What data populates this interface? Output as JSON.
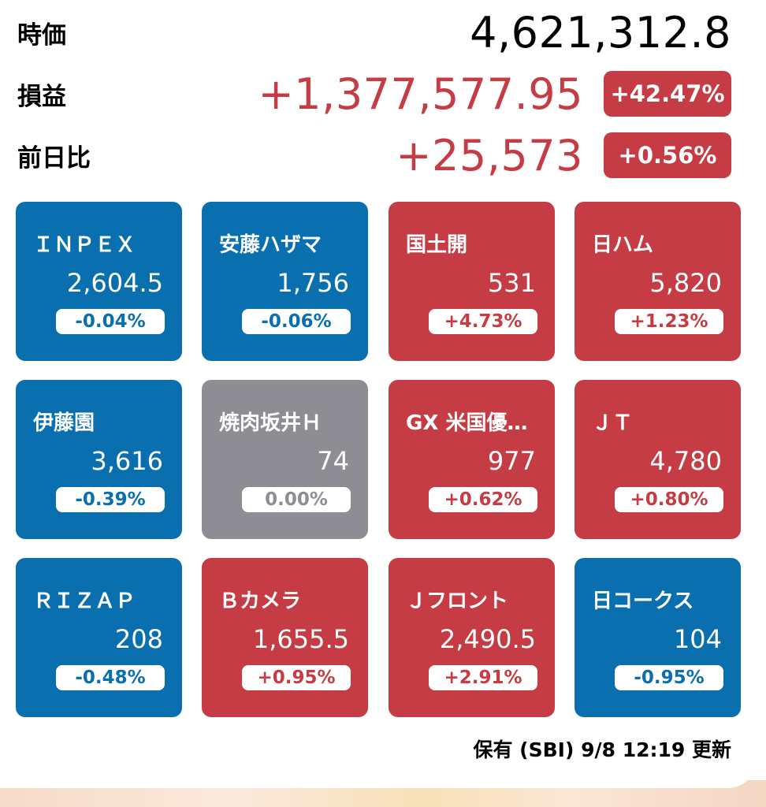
{
  "summary": {
    "market_value_label": "時価",
    "market_value": "4,621,312.8",
    "pl_label": "損益",
    "pl_value": "+1,377,577.95",
    "pl_pct": "+42.47%",
    "day_label": "前日比",
    "day_value": "+25,573",
    "day_pct": "+0.56%"
  },
  "colors": {
    "down": "#0a6fae",
    "up": "#c63c44",
    "flat": "#8e8d93"
  },
  "tiles": [
    {
      "name": "ＩＮＰＥＸ",
      "price": "2,604.5",
      "change": "-0.04%",
      "trend": "down"
    },
    {
      "name": "安藤ハザマ",
      "price": "1,756",
      "change": "-0.06%",
      "trend": "down"
    },
    {
      "name": "国土開",
      "price": "531",
      "change": "+4.73%",
      "trend": "up"
    },
    {
      "name": "日ハム",
      "price": "5,820",
      "change": "+1.23%",
      "trend": "up"
    },
    {
      "name": "伊藤園",
      "price": "3,616",
      "change": "-0.39%",
      "trend": "down"
    },
    {
      "name": "焼肉坂井Ｈ",
      "price": "74",
      "change": "0.00%",
      "trend": "flat"
    },
    {
      "name": "GX 米国優…",
      "price": "977",
      "change": "+0.62%",
      "trend": "up"
    },
    {
      "name": "ＪＴ",
      "price": "4,780",
      "change": "+0.80%",
      "trend": "up"
    },
    {
      "name": "ＲＩＺＡＰ",
      "price": "208",
      "change": "-0.48%",
      "trend": "down"
    },
    {
      "name": "Ｂカメラ",
      "price": "1,655.5",
      "change": "+0.95%",
      "trend": "up"
    },
    {
      "name": "Ｊフロント",
      "price": "2,490.5",
      "change": "+2.91%",
      "trend": "up"
    },
    {
      "name": "日コークス",
      "price": "104",
      "change": "-0.95%",
      "trend": "down"
    }
  ],
  "footer": {
    "status": "保有 (SBI)  9/8 12:19 更新"
  }
}
